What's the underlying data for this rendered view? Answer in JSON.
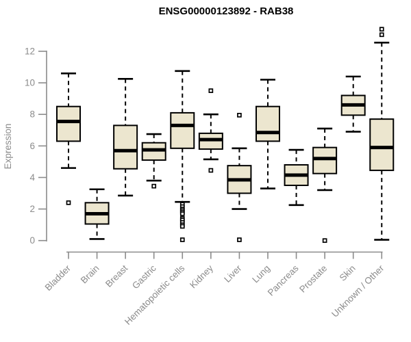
{
  "header": {
    "title": "ENSG00000123892 - RAB38"
  },
  "chart_data": {
    "type": "boxplot",
    "title": "ENSG00000123892 - RAB38",
    "xlabel": "",
    "ylabel": "Expression",
    "ylim": [
      0,
      13.6
    ],
    "yticks": [
      0,
      2,
      4,
      6,
      8,
      10,
      12
    ],
    "grid": false,
    "legend": false,
    "x_label_rotation": -45,
    "categories": [
      "Bladder",
      "Brain",
      "Breast",
      "Gastric",
      "Hematopoietic cells",
      "Kidney",
      "Liver",
      "Lung",
      "Pancreas",
      "Prostate",
      "Skin",
      "Unknown / Other"
    ],
    "boxes": [
      {
        "category": "Bladder",
        "whisker_low": 4.6,
        "q1": 6.3,
        "median": 7.55,
        "q3": 8.5,
        "whisker_high": 10.6,
        "outliers": [
          2.4
        ]
      },
      {
        "category": "Brain",
        "whisker_low": 0.1,
        "q1": 1.05,
        "median": 1.7,
        "q3": 2.4,
        "whisker_high": 3.25,
        "outliers": []
      },
      {
        "category": "Breast",
        "whisker_low": 2.85,
        "q1": 4.55,
        "median": 5.7,
        "q3": 7.3,
        "whisker_high": 10.25,
        "outliers": []
      },
      {
        "category": "Gastric",
        "whisker_low": 3.8,
        "q1": 5.1,
        "median": 5.75,
        "q3": 6.2,
        "whisker_high": 6.75,
        "outliers": [
          3.45
        ]
      },
      {
        "category": "Hematopoietic cells",
        "whisker_low": 2.45,
        "q1": 5.85,
        "median": 7.3,
        "q3": 8.1,
        "whisker_high": 10.75,
        "outliers": [
          2.3,
          2.15,
          2.0,
          1.9,
          1.8,
          1.7,
          1.4,
          1.3,
          1.15,
          1.0,
          0.9,
          0.05
        ]
      },
      {
        "category": "Kidney",
        "whisker_low": 5.15,
        "q1": 5.8,
        "median": 6.4,
        "q3": 6.8,
        "whisker_high": 8.0,
        "outliers": [
          9.5,
          4.45
        ]
      },
      {
        "category": "Liver",
        "whisker_low": 2.0,
        "q1": 3.0,
        "median": 3.85,
        "q3": 4.75,
        "whisker_high": 5.85,
        "outliers": [
          7.95,
          0.05
        ]
      },
      {
        "category": "Lung",
        "whisker_low": 3.3,
        "q1": 6.3,
        "median": 6.85,
        "q3": 8.5,
        "whisker_high": 10.2,
        "outliers": []
      },
      {
        "category": "Pancreas",
        "whisker_low": 2.25,
        "q1": 3.5,
        "median": 4.15,
        "q3": 4.8,
        "whisker_high": 5.75,
        "outliers": []
      },
      {
        "category": "Prostate",
        "whisker_low": 3.2,
        "q1": 4.25,
        "median": 5.2,
        "q3": 5.9,
        "whisker_high": 7.1,
        "outliers": [
          0.0
        ]
      },
      {
        "category": "Skin",
        "whisker_low": 6.9,
        "q1": 7.95,
        "median": 8.6,
        "q3": 9.2,
        "whisker_high": 10.4,
        "outliers": []
      },
      {
        "category": "Unknown / Other",
        "whisker_low": 0.05,
        "q1": 4.45,
        "median": 5.9,
        "q3": 7.7,
        "whisker_high": 12.55,
        "outliers": [
          13.4,
          13.05
        ]
      }
    ],
    "colors": {
      "box_fill": "#ece6cf",
      "box_border": "#000000",
      "median": "#000000",
      "whisker": "#000000",
      "axis": "#8b8b8b",
      "tick_label": "#8b8b8b",
      "title": "#000000",
      "background": "#ffffff"
    }
  }
}
